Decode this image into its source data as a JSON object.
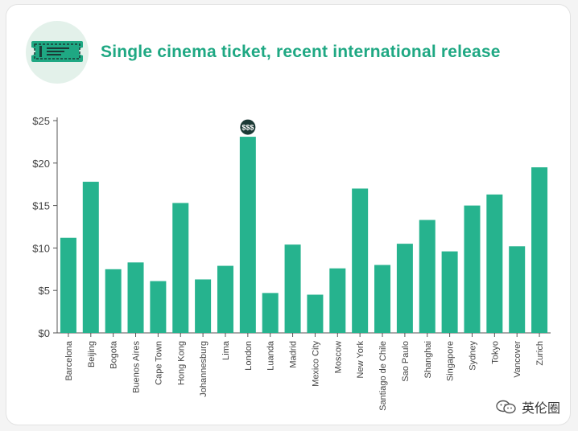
{
  "title": "Single cinema ticket, recent international release",
  "highlight_badge": "$$$",
  "watermark_text": "英伦圈",
  "colors": {
    "bar": "#26b38e",
    "title": "#1fa883",
    "badge_bg": "#1c3a36",
    "axis_text": "#444444",
    "icon": "#1fa883"
  },
  "chart_data": {
    "type": "bar",
    "title": "Single cinema ticket, recent international release",
    "xlabel": "",
    "ylabel": "",
    "ylim": [
      0,
      25
    ],
    "yticks": [
      0,
      5,
      10,
      15,
      20,
      25
    ],
    "ytick_labels": [
      "$0",
      "$5",
      "$10",
      "$15",
      "$20",
      "$25"
    ],
    "categories": [
      "Barcelona",
      "Beijing",
      "Bogota",
      "Buenos Aires",
      "Cape Town",
      "Hong Kong",
      "Johannesburg",
      "Lima",
      "London",
      "Luanda",
      "Madrid",
      "Mexico City",
      "Moscow",
      "New York",
      "Santiago de Chile",
      "Sao Paulo",
      "Shanghai",
      "Singapore",
      "Sydney",
      "Tokyo",
      "Vancover",
      "Zurich"
    ],
    "values": [
      11.2,
      17.8,
      7.5,
      8.3,
      6.1,
      15.3,
      6.3,
      7.9,
      23.1,
      4.7,
      10.4,
      4.5,
      7.6,
      17.0,
      8.0,
      10.5,
      13.3,
      9.6,
      15.0,
      16.3,
      10.2,
      19.5
    ],
    "highlight_category": "London",
    "grid": false
  }
}
